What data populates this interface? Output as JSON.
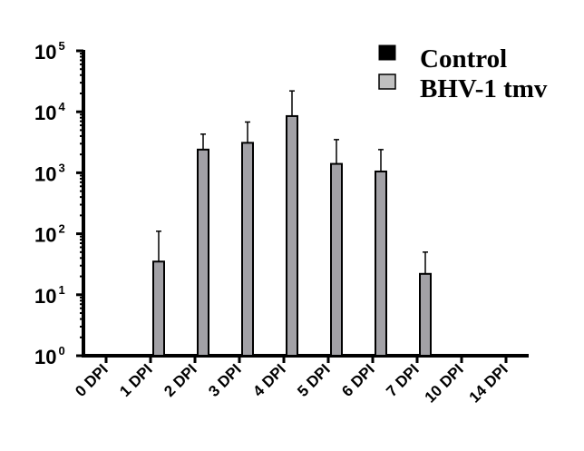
{
  "chart_data": {
    "type": "bar",
    "title": "",
    "xlabel": "",
    "ylabel": "",
    "y_scale": "log",
    "ylim": [
      1,
      100000
    ],
    "y_tick_labels": [
      {
        "base": "10",
        "exp": "0"
      },
      {
        "base": "10",
        "exp": "1"
      },
      {
        "base": "10",
        "exp": "2"
      },
      {
        "base": "10",
        "exp": "3"
      },
      {
        "base": "10",
        "exp": "4"
      },
      {
        "base": "10",
        "exp": "5"
      }
    ],
    "categories": [
      "0 DPI",
      "1 DPI",
      "2 DPI",
      "3 DPI",
      "4 DPI",
      "5 DPI",
      "6 DPI",
      "7 DPI",
      "10 DPI",
      "14 DPI"
    ],
    "grid": false,
    "legend_position": "top-right",
    "series": [
      {
        "name": "Control",
        "color": "#000000",
        "values": [
          null,
          null,
          null,
          null,
          null,
          null,
          null,
          null,
          null,
          null
        ],
        "error_upper": []
      },
      {
        "name": "BHV-1 tmv",
        "color": "#a2a1a6",
        "legend_color": "#c0c0c0",
        "values": [
          null,
          35,
          2400,
          3100,
          8500,
          1400,
          1050,
          22,
          null,
          null
        ],
        "error_upper": [
          null,
          110,
          4300,
          6800,
          22000,
          3500,
          2400,
          50,
          null,
          null
        ]
      }
    ]
  }
}
